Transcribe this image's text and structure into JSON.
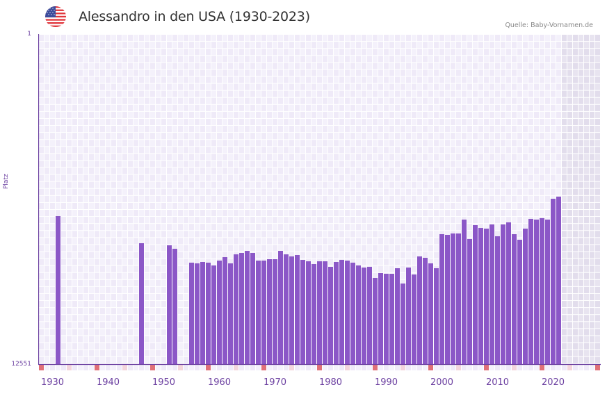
{
  "header": {
    "title": "Alessandro in den USA (1930-2023)",
    "source": "Quelle: Baby-Vornamen.de",
    "flag_icon": "us-flag-icon"
  },
  "colors": {
    "bar": "#8b57c7",
    "axis": "#6b3fa0",
    "grid_a": "#efeaf8",
    "grid_b": "#f4f1fb",
    "future_a": "#e2ddec",
    "future_b": "#e8e4f0",
    "marker_decade": "#e07078",
    "marker_half": "#f3d5dd"
  },
  "chart_data": {
    "type": "bar",
    "title": "Alessandro in den USA (1930-2023)",
    "xlabel": "",
    "ylabel": "Platz",
    "ylim": [
      12551,
      1
    ],
    "y_inverted": true,
    "yticks": [
      "1",
      "12551"
    ],
    "xticks": [
      "1930",
      "1940",
      "1950",
      "1960",
      "1970",
      "1980",
      "1990",
      "2000",
      "2010",
      "2020"
    ],
    "x_range": [
      1928,
      2028
    ],
    "data_end_year": 2021,
    "grid": true,
    "series": [
      {
        "name": "Platz",
        "points": [
          [
            1931,
            6912
          ],
          [
            1946,
            7944
          ],
          [
            1951,
            8024
          ],
          [
            1952,
            8156
          ],
          [
            1955,
            8685
          ],
          [
            1956,
            8712
          ],
          [
            1957,
            8659
          ],
          [
            1958,
            8685
          ],
          [
            1959,
            8791
          ],
          [
            1960,
            8606
          ],
          [
            1961,
            8474
          ],
          [
            1962,
            8712
          ],
          [
            1963,
            8368
          ],
          [
            1964,
            8315
          ],
          [
            1965,
            8236
          ],
          [
            1966,
            8315
          ],
          [
            1967,
            8606
          ],
          [
            1968,
            8606
          ],
          [
            1969,
            8553
          ],
          [
            1970,
            8553
          ],
          [
            1971,
            8236
          ],
          [
            1972,
            8368
          ],
          [
            1973,
            8447
          ],
          [
            1974,
            8394
          ],
          [
            1975,
            8580
          ],
          [
            1976,
            8633
          ],
          [
            1977,
            8738
          ],
          [
            1978,
            8633
          ],
          [
            1979,
            8633
          ],
          [
            1980,
            8844
          ],
          [
            1981,
            8659
          ],
          [
            1982,
            8580
          ],
          [
            1983,
            8606
          ],
          [
            1984,
            8685
          ],
          [
            1985,
            8791
          ],
          [
            1986,
            8871
          ],
          [
            1987,
            8844
          ],
          [
            1988,
            9268
          ],
          [
            1989,
            9082
          ],
          [
            1990,
            9109
          ],
          [
            1991,
            9109
          ],
          [
            1992,
            8897
          ],
          [
            1993,
            9480
          ],
          [
            1994,
            8871
          ],
          [
            1995,
            9135
          ],
          [
            1996,
            8447
          ],
          [
            1997,
            8500
          ],
          [
            1998,
            8712
          ],
          [
            1999,
            8897
          ],
          [
            2000,
            7600
          ],
          [
            2001,
            7626
          ],
          [
            2002,
            7573
          ],
          [
            2003,
            7573
          ],
          [
            2004,
            7044
          ],
          [
            2005,
            7785
          ],
          [
            2006,
            7256
          ],
          [
            2007,
            7362
          ],
          [
            2008,
            7388
          ],
          [
            2009,
            7229
          ],
          [
            2010,
            7679
          ],
          [
            2011,
            7229
          ],
          [
            2012,
            7150
          ],
          [
            2013,
            7600
          ],
          [
            2014,
            7812
          ],
          [
            2015,
            7388
          ],
          [
            2016,
            7017
          ],
          [
            2017,
            7044
          ],
          [
            2018,
            6991
          ],
          [
            2019,
            7044
          ],
          [
            2020,
            6250
          ],
          [
            2021,
            6170
          ]
        ]
      }
    ]
  }
}
